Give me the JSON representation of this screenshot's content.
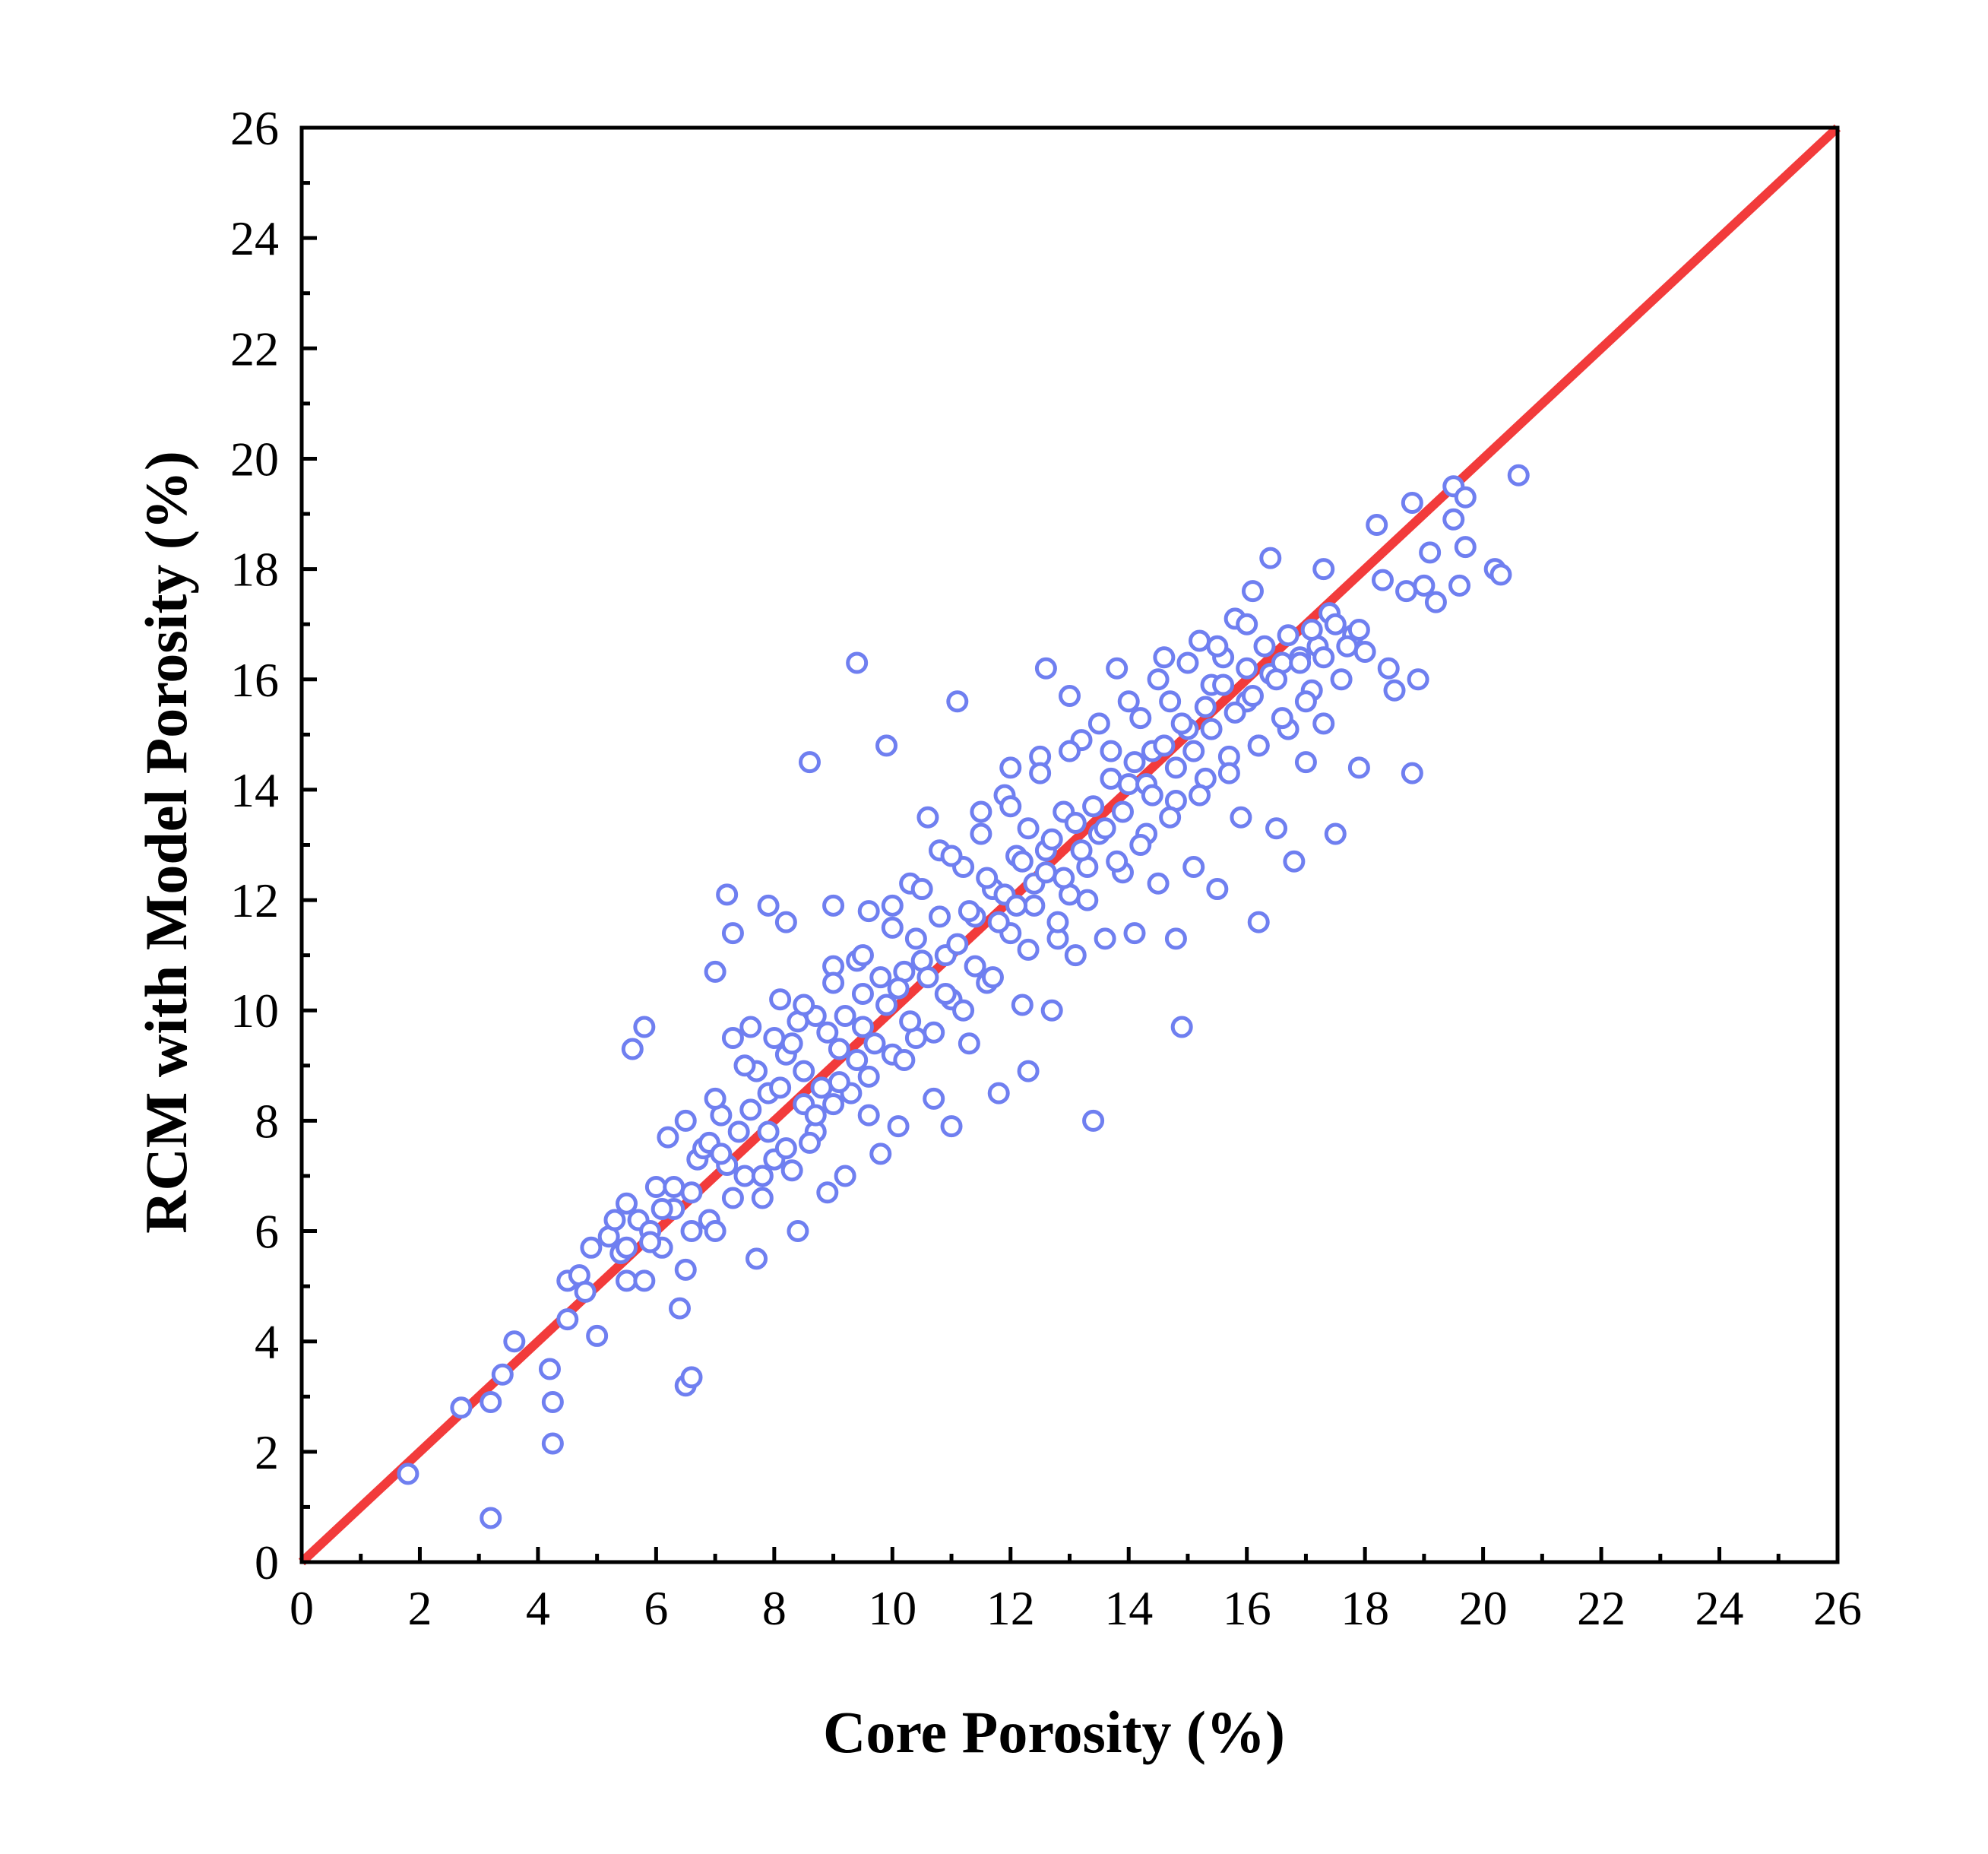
{
  "chart_data": {
    "type": "scatter",
    "title": "",
    "xlabel": "Core Porosity (%)",
    "ylabel": "RCM with Model Porosity (%)",
    "xlim": [
      0,
      26
    ],
    "ylim": [
      0,
      26
    ],
    "xticks": [
      "0",
      "2",
      "4",
      "6",
      "8",
      "10",
      "12",
      "14",
      "16",
      "18",
      "20",
      "22",
      "24",
      "26"
    ],
    "yticks": [
      "0",
      "2",
      "4",
      "6",
      "8",
      "10",
      "12",
      "14",
      "16",
      "18",
      "20",
      "22",
      "24",
      "26"
    ],
    "grid": false,
    "legend": "none",
    "marker": "hollow circle",
    "colors": {
      "points": "#6f7ff0",
      "reference_line": "#f23b3b",
      "axes": "#000000"
    },
    "reference_line": {
      "type": "y = x",
      "from": [
        0,
        0
      ],
      "to": [
        26,
        26
      ]
    },
    "series": [
      {
        "values": [
          [
            1.8,
            1.6
          ],
          [
            2.7,
            2.8
          ],
          [
            3.2,
            2.9
          ],
          [
            3.2,
            0.8
          ],
          [
            3.4,
            3.4
          ],
          [
            3.6,
            4.0
          ],
          [
            4.2,
            3.5
          ],
          [
            4.25,
            2.9
          ],
          [
            4.25,
            2.15
          ],
          [
            4.5,
            4.4
          ],
          [
            4.5,
            5.1
          ],
          [
            4.7,
            5.2
          ],
          [
            4.8,
            4.9
          ],
          [
            4.9,
            5.7
          ],
          [
            5.0,
            4.1
          ],
          [
            5.2,
            5.9
          ],
          [
            5.3,
            6.2
          ],
          [
            5.4,
            5.6
          ],
          [
            5.5,
            5.7
          ],
          [
            5.5,
            6.5
          ],
          [
            5.5,
            5.1
          ],
          [
            5.6,
            9.3
          ],
          [
            5.7,
            6.2
          ],
          [
            5.8,
            9.7
          ],
          [
            5.8,
            5.1
          ],
          [
            5.9,
            6.0
          ],
          [
            6.0,
            6.8
          ],
          [
            6.1,
            5.7
          ],
          [
            6.2,
            7.7
          ],
          [
            6.3,
            6.4
          ],
          [
            6.4,
            4.6
          ],
          [
            6.5,
            8.0
          ],
          [
            6.5,
            3.2
          ],
          [
            6.6,
            3.35
          ],
          [
            6.5,
            5.3
          ],
          [
            6.6,
            6.7
          ],
          [
            6.7,
            7.3
          ],
          [
            6.8,
            7.5
          ],
          [
            6.9,
            6.2
          ],
          [
            7.0,
            10.7
          ],
          [
            7.0,
            6.0
          ],
          [
            7.1,
            8.1
          ],
          [
            7.2,
            12.1
          ],
          [
            7.2,
            7.2
          ],
          [
            7.3,
            11.4
          ],
          [
            7.3,
            9.5
          ],
          [
            7.4,
            7.8
          ],
          [
            7.5,
            7.0
          ],
          [
            7.6,
            9.7
          ],
          [
            7.7,
            5.5
          ],
          [
            7.7,
            8.9
          ],
          [
            7.8,
            6.6
          ],
          [
            7.9,
            11.9
          ],
          [
            7.9,
            8.5
          ],
          [
            8.0,
            7.3
          ],
          [
            8.1,
            10.2
          ],
          [
            8.2,
            11.6
          ],
          [
            8.2,
            9.2
          ],
          [
            8.3,
            7.1
          ],
          [
            8.4,
            6.0
          ],
          [
            8.4,
            9.8
          ],
          [
            8.5,
            8.3
          ],
          [
            8.6,
            14.5
          ],
          [
            8.7,
            9.9
          ],
          [
            8.7,
            7.8
          ],
          [
            8.8,
            8.6
          ],
          [
            8.9,
            6.7
          ],
          [
            9.0,
            11.9
          ],
          [
            9.0,
            10.8
          ],
          [
            9.1,
            9.3
          ],
          [
            9.2,
            7.0
          ],
          [
            9.3,
            8.5
          ],
          [
            9.4,
            16.3
          ],
          [
            9.4,
            10.9
          ],
          [
            9.5,
            9.7
          ],
          [
            9.6,
            11.8
          ],
          [
            9.6,
            8.1
          ],
          [
            9.8,
            7.4
          ],
          [
            9.8,
            10.6
          ],
          [
            9.9,
            14.8
          ],
          [
            10.0,
            9.2
          ],
          [
            10.0,
            11.5
          ],
          [
            10.1,
            7.9
          ],
          [
            10.2,
            10.7
          ],
          [
            10.3,
            12.3
          ],
          [
            10.4,
            9.5
          ],
          [
            10.5,
            10.9
          ],
          [
            10.6,
            13.5
          ],
          [
            10.7,
            8.4
          ],
          [
            10.8,
            12.9
          ],
          [
            10.9,
            11.0
          ],
          [
            11.0,
            7.9
          ],
          [
            11.0,
            10.2
          ],
          [
            11.1,
            15.6
          ],
          [
            11.2,
            12.6
          ],
          [
            11.3,
            9.4
          ],
          [
            11.4,
            11.7
          ],
          [
            11.5,
            13.6
          ],
          [
            11.6,
            10.5
          ],
          [
            11.7,
            12.2
          ],
          [
            11.8,
            8.5
          ],
          [
            11.9,
            13.9
          ],
          [
            12.0,
            11.4
          ],
          [
            12.0,
            14.4
          ],
          [
            12.1,
            12.8
          ],
          [
            12.2,
            10.1
          ],
          [
            12.3,
            13.3
          ],
          [
            12.3,
            8.9
          ],
          [
            12.4,
            11.9
          ],
          [
            12.5,
            14.6
          ],
          [
            12.6,
            16.2
          ],
          [
            12.6,
            12.9
          ],
          [
            12.7,
            10.0
          ],
          [
            12.8,
            11.3
          ],
          [
            12.9,
            13.6
          ],
          [
            13.0,
            15.7
          ],
          [
            13.0,
            12.1
          ],
          [
            13.1,
            11.0
          ],
          [
            13.2,
            14.9
          ],
          [
            13.3,
            12.6
          ],
          [
            13.4,
            8.0
          ],
          [
            13.5,
            13.2
          ],
          [
            13.6,
            11.3
          ],
          [
            13.7,
            14.7
          ],
          [
            13.8,
            16.2
          ],
          [
            13.9,
            12.5
          ],
          [
            14.0,
            14.1
          ],
          [
            14.1,
            11.4
          ],
          [
            14.2,
            15.3
          ],
          [
            14.3,
            13.2
          ],
          [
            14.4,
            14.7
          ],
          [
            14.5,
            12.3
          ],
          [
            14.6,
            16.4
          ],
          [
            14.7,
            15.6
          ],
          [
            14.8,
            11.3
          ],
          [
            14.8,
            13.8
          ],
          [
            14.9,
            9.7
          ],
          [
            15.0,
            15.1
          ],
          [
            15.1,
            12.6
          ],
          [
            15.2,
            16.7
          ],
          [
            15.3,
            14.2
          ],
          [
            15.4,
            15.9
          ],
          [
            15.5,
            12.2
          ],
          [
            15.6,
            16.4
          ],
          [
            15.7,
            14.6
          ],
          [
            15.8,
            17.1
          ],
          [
            15.9,
            13.5
          ],
          [
            16.0,
            15.6
          ],
          [
            16.1,
            17.6
          ],
          [
            16.2,
            11.6
          ],
          [
            16.2,
            14.8
          ],
          [
            16.4,
            18.2
          ],
          [
            16.4,
            16.1
          ],
          [
            16.5,
            13.3
          ],
          [
            16.6,
            16.3
          ],
          [
            16.7,
            15.1
          ],
          [
            16.8,
            12.7
          ],
          [
            16.9,
            16.4
          ],
          [
            17.0,
            14.5
          ],
          [
            17.1,
            15.8
          ],
          [
            17.2,
            16.6
          ],
          [
            17.3,
            18.0
          ],
          [
            17.3,
            15.2
          ],
          [
            17.4,
            17.2
          ],
          [
            17.5,
            13.2
          ],
          [
            17.6,
            16.0
          ],
          [
            17.8,
            16.8
          ],
          [
            17.9,
            14.4
          ],
          [
            18.0,
            16.5
          ],
          [
            18.2,
            18.8
          ],
          [
            18.3,
            17.8
          ],
          [
            18.4,
            16.2
          ],
          [
            18.5,
            15.8
          ],
          [
            18.7,
            17.6
          ],
          [
            18.8,
            19.2
          ],
          [
            18.8,
            14.3
          ],
          [
            18.9,
            16.0
          ],
          [
            19.0,
            17.7
          ],
          [
            19.1,
            18.3
          ],
          [
            19.2,
            17.4
          ],
          [
            19.5,
            19.5
          ],
          [
            19.5,
            18.9
          ],
          [
            19.6,
            17.7
          ],
          [
            19.7,
            18.4
          ],
          [
            19.7,
            19.3
          ],
          [
            20.2,
            18.0
          ],
          [
            20.3,
            17.9
          ],
          [
            20.6,
            19.7
          ],
          [
            6.3,
            6.8
          ],
          [
            6.9,
            7.6
          ],
          [
            7.1,
            7.4
          ],
          [
            7.6,
            8.2
          ],
          [
            7.9,
            7.8
          ],
          [
            8.1,
            8.6
          ],
          [
            8.3,
            9.4
          ],
          [
            8.5,
            8.9
          ],
          [
            8.6,
            7.6
          ],
          [
            8.9,
            9.6
          ],
          [
            9.1,
            8.7
          ],
          [
            9.2,
            9.9
          ],
          [
            9.4,
            9.1
          ],
          [
            9.5,
            10.3
          ],
          [
            9.7,
            9.4
          ],
          [
            9.9,
            10.1
          ],
          [
            10.1,
            10.4
          ],
          [
            10.3,
            9.8
          ],
          [
            10.4,
            11.3
          ],
          [
            10.6,
            10.6
          ],
          [
            10.8,
            11.7
          ],
          [
            10.9,
            10.3
          ],
          [
            11.1,
            11.2
          ],
          [
            11.3,
            11.8
          ],
          [
            11.4,
            10.8
          ],
          [
            11.6,
            12.4
          ],
          [
            11.8,
            11.6
          ],
          [
            11.9,
            12.1
          ],
          [
            12.1,
            11.9
          ],
          [
            12.2,
            12.7
          ],
          [
            12.4,
            12.3
          ],
          [
            12.6,
            12.5
          ],
          [
            12.7,
            13.1
          ],
          [
            12.9,
            12.4
          ],
          [
            13.1,
            13.4
          ],
          [
            13.2,
            12.9
          ],
          [
            13.4,
            13.7
          ],
          [
            13.6,
            13.3
          ],
          [
            13.7,
            14.2
          ],
          [
            13.9,
            13.6
          ],
          [
            14.1,
            14.5
          ],
          [
            14.3,
            14.1
          ],
          [
            14.4,
            13.9
          ],
          [
            14.6,
            14.8
          ],
          [
            14.8,
            14.4
          ],
          [
            14.9,
            15.2
          ],
          [
            15.1,
            14.7
          ],
          [
            15.3,
            15.5
          ],
          [
            15.4,
            15.1
          ],
          [
            15.6,
            15.9
          ],
          [
            15.8,
            15.4
          ],
          [
            16.0,
            16.2
          ],
          [
            16.1,
            15.7
          ],
          [
            16.3,
            16.6
          ],
          [
            16.5,
            16.0
          ],
          [
            16.7,
            16.8
          ],
          [
            16.9,
            16.3
          ],
          [
            17.1,
            16.9
          ],
          [
            17.3,
            16.4
          ],
          [
            17.5,
            17.0
          ],
          [
            17.7,
            16.6
          ],
          [
            17.9,
            16.9
          ],
          [
            5.9,
            5.8
          ],
          [
            6.1,
            6.4
          ],
          [
            6.6,
            6.0
          ],
          [
            7.3,
            6.6
          ],
          [
            7.8,
            7.0
          ],
          [
            8.2,
            7.5
          ],
          [
            8.7,
            8.1
          ],
          [
            9.0,
            8.3
          ],
          [
            9.6,
            8.8
          ],
          [
            10.2,
            9.1
          ],
          [
            10.7,
            9.6
          ],
          [
            11.2,
            10.0
          ],
          [
            11.7,
            10.6
          ],
          [
            12.3,
            11.1
          ],
          [
            12.8,
            11.6
          ],
          [
            13.3,
            12.0
          ],
          [
            13.8,
            12.7
          ],
          [
            14.2,
            13.0
          ],
          [
            14.7,
            13.5
          ],
          [
            15.2,
            13.9
          ],
          [
            15.7,
            14.3
          ],
          [
            16.2,
            14.8
          ],
          [
            16.6,
            15.3
          ],
          [
            17.0,
            15.6
          ],
          [
            7.0,
            8.4
          ],
          [
            7.5,
            9.0
          ],
          [
            8.0,
            9.5
          ],
          [
            8.5,
            10.1
          ],
          [
            9.0,
            10.5
          ],
          [
            9.5,
            11.0
          ],
          [
            10.0,
            11.9
          ],
          [
            10.5,
            12.2
          ],
          [
            11.0,
            12.8
          ],
          [
            11.5,
            13.2
          ],
          [
            12.0,
            13.7
          ],
          [
            12.5,
            14.3
          ],
          [
            13.0,
            14.7
          ],
          [
            13.5,
            15.2
          ],
          [
            14.0,
            15.6
          ],
          [
            14.5,
            16.0
          ],
          [
            15.0,
            16.3
          ],
          [
            15.5,
            16.6
          ],
          [
            16.0,
            17.0
          ]
        ]
      }
    ]
  }
}
